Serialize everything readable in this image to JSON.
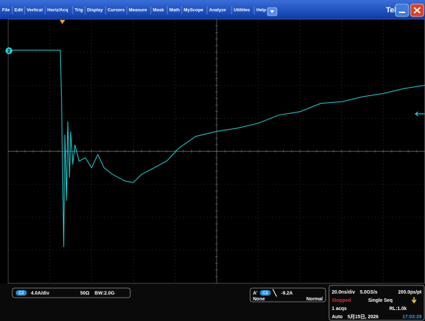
{
  "menu": [
    "File",
    "Edit",
    "Vertical",
    "Horiz/Acq",
    "Trig",
    "Display",
    "Cursors",
    "Measure",
    "Mask",
    "Math",
    "MyScope",
    "Analyze",
    "Utilities",
    "Help"
  ],
  "brand": "Tek",
  "channel_marker": "2",
  "channel": {
    "badge": "C2",
    "scale": "4.0A/div",
    "impedance": "50Ω",
    "bandwidth": "BW:2.0G"
  },
  "trigger": {
    "source_prefix": "A'",
    "badge": "C2",
    "slope": "╲",
    "level": "-9.2A",
    "coupling": "None",
    "mode": "Normal"
  },
  "acquisition": {
    "timebase": "20.0ns/div",
    "sample_rate": "5.0GS/s",
    "resolution": "200.0ps/pt",
    "state": "Stopped",
    "run_mode": "Single Seq",
    "acqs": "1 acqs",
    "record_length": "RL:1.0k",
    "trigger_mode": "Auto",
    "date": "5月15日, 2026",
    "time": "17:03:29"
  },
  "trace": {
    "x": [
      0,
      1.25,
      1.28,
      1.33,
      1.36,
      1.4,
      1.43,
      1.47,
      1.5,
      1.55,
      1.6,
      1.7,
      1.85,
      2.0,
      2.15,
      2.3,
      2.5,
      2.8,
      3.0,
      3.2,
      3.5,
      3.8,
      4.1,
      4.5,
      5.0,
      5.5,
      6.0,
      6.5,
      7.0,
      7.5,
      8.0,
      8.5,
      9.0,
      9.5,
      10
    ],
    "y": [
      3.06,
      3.06,
      1.5,
      -2.9,
      0.5,
      -1.5,
      0.9,
      -0.8,
      0.6,
      -0.4,
      0.2,
      -0.3,
      -0.2,
      -0.5,
      -0.1,
      -0.5,
      -0.7,
      -0.9,
      -0.95,
      -0.7,
      -0.5,
      -0.3,
      0.1,
      0.45,
      0.6,
      0.7,
      0.85,
      1.1,
      1.2,
      1.45,
      1.5,
      1.65,
      1.75,
      1.9,
      2.0
    ]
  }
}
